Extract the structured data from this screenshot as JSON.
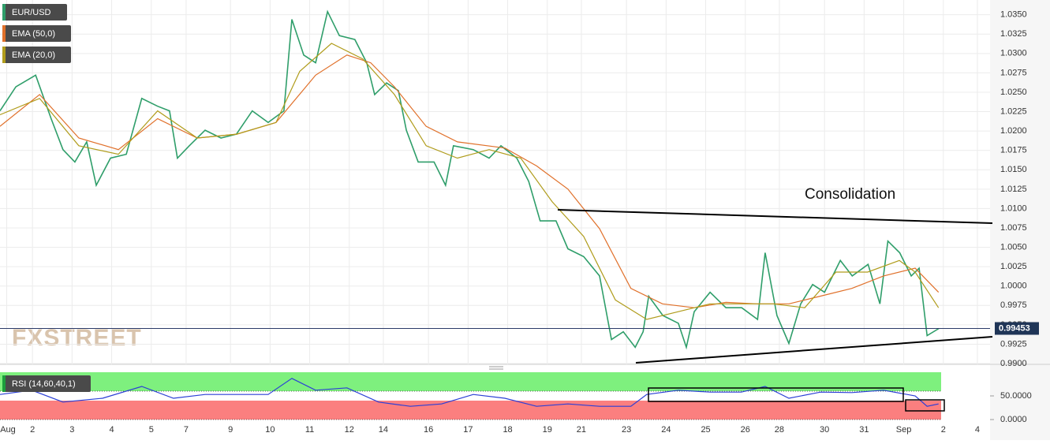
{
  "chart_data": [
    {
      "type": "line",
      "series": [
        {
          "name": "EUR/USD",
          "color": "#2f9e6a",
          "x": [
            0.18,
            0.58,
            1.08,
            1.47,
            1.77,
            2.07,
            2.37,
            2.61,
            2.97,
            3.37,
            3.76,
            4.16,
            4.46,
            4.66,
            4.96,
            5.36,
            5.76,
            6.15,
            6.55,
            6.95,
            7.35,
            7.55,
            7.85,
            8.15,
            8.45,
            8.75,
            9.14,
            9.44,
            9.64,
            9.94,
            10.24,
            10.44,
            10.74,
            11.14,
            11.43,
            11.63,
            12.13,
            12.53,
            12.83,
            13.23,
            13.53,
            13.82,
            14.22,
            14.52,
            14.92,
            15.32,
            15.62,
            15.92,
            16.22,
            16.42,
            16.56,
            16.92,
            17.31,
            17.51,
            17.71,
            18.11,
            18.51,
            18.91,
            19.31,
            19.5,
            19.8,
            20.1,
            20.4,
            20.7,
            21.0,
            21.4,
            21.7,
            22.1,
            22.4,
            22.6,
            22.9,
            23.19,
            23.39,
            23.59,
            23.89
          ],
          "values": [
            1.0226,
            1.0257,
            1.0272,
            1.0216,
            1.0176,
            1.016,
            1.0186,
            1.013,
            1.0165,
            1.017,
            1.0242,
            1.0232,
            1.0226,
            1.0165,
            1.0181,
            1.0201,
            1.0191,
            1.0196,
            1.0226,
            1.0211,
            1.0226,
            1.0344,
            1.0298,
            1.0288,
            1.0354,
            1.0323,
            1.0318,
            1.0288,
            1.0247,
            1.0262,
            1.0252,
            1.0201,
            1.016,
            1.016,
            1.013,
            1.0181,
            1.0176,
            1.0165,
            1.0181,
            1.0165,
            1.0135,
            1.0084,
            1.0084,
            1.0048,
            1.0038,
            1.0013,
            0.9931,
            0.9941,
            0.9921,
            0.9941,
            0.9987,
            0.9962,
            0.9952,
            0.9921,
            0.9967,
            0.9992,
            0.9972,
            0.9972,
            0.9957,
            1.0043,
            0.9962,
            0.9926,
            0.9977,
            1.0002,
            0.9992,
            1.0033,
            1.0013,
            1.0028,
            0.9977,
            1.0058,
            1.0043,
            1.0013,
            1.0023,
            0.9936,
            0.99453
          ]
        },
        {
          "name": "EMA (50,0)",
          "color": "#e0702a",
          "x": [
            0.18,
            1.18,
            2.17,
            3.17,
            4.16,
            5.16,
            6.16,
            7.15,
            8.15,
            8.94,
            9.54,
            10.14,
            10.94,
            11.73,
            12.93,
            13.73,
            14.52,
            15.32,
            16.11,
            16.91,
            17.71,
            18.51,
            19.3,
            20.1,
            20.9,
            21.69,
            22.49,
            23.29,
            23.88
          ],
          "values": [
            1.0206,
            1.0247,
            1.0191,
            1.0176,
            1.0216,
            1.0191,
            1.0196,
            1.0211,
            1.0272,
            1.0298,
            1.0288,
            1.0257,
            1.0206,
            1.0186,
            1.0178,
            1.0155,
            1.0125,
            1.0074,
            0.9997,
            0.9977,
            0.9972,
            0.9979,
            0.9977,
            0.9977,
            0.9987,
            0.9997,
            1.0013,
            1.0023,
            0.9992
          ]
        },
        {
          "name": "EMA (20,0)",
          "color": "#b09c1c",
          "x": [
            0.18,
            1.18,
            2.17,
            3.17,
            4.16,
            5.16,
            6.16,
            7.15,
            7.75,
            8.55,
            9.34,
            10.14,
            10.94,
            11.73,
            12.53,
            13.33,
            14.12,
            14.92,
            15.72,
            16.51,
            17.31,
            18.11,
            18.9,
            19.7,
            20.5,
            21.29,
            22.09,
            22.89,
            23.29,
            23.88
          ],
          "values": [
            1.0221,
            1.0242,
            1.0181,
            1.017,
            1.0226,
            1.0191,
            1.0196,
            1.0211,
            1.0277,
            1.0313,
            1.0293,
            1.0247,
            1.0181,
            1.0165,
            1.0176,
            1.0165,
            1.0109,
            1.0064,
            0.9982,
            0.9957,
            0.9967,
            0.9977,
            0.9977,
            0.9977,
            0.9972,
            1.0018,
            1.0018,
            1.0033,
            1.0018,
            0.9972
          ]
        }
      ],
      "last_value": 0.99453,
      "annotation": "Consolidation",
      "xlim": [
        0.18,
        25.18
      ],
      "xticks": [
        {
          "value": 0.35,
          "label": "Aug"
        },
        {
          "value": 1,
          "label": "2"
        },
        {
          "value": 2,
          "label": "3"
        },
        {
          "value": 3,
          "label": "4"
        },
        {
          "value": 4,
          "label": "5"
        },
        {
          "value": 4.88,
          "label": "7"
        },
        {
          "value": 6,
          "label": "9"
        },
        {
          "value": 7,
          "label": "10"
        },
        {
          "value": 8,
          "label": "11"
        },
        {
          "value": 9,
          "label": "12"
        },
        {
          "value": 9.86,
          "label": "14"
        },
        {
          "value": 11,
          "label": "16"
        },
        {
          "value": 12,
          "label": "17"
        },
        {
          "value": 13,
          "label": "18"
        },
        {
          "value": 14,
          "label": "19"
        },
        {
          "value": 14.86,
          "label": "21"
        },
        {
          "value": 16,
          "label": "23"
        },
        {
          "value": 17,
          "label": "24"
        },
        {
          "value": 18,
          "label": "25"
        },
        {
          "value": 19,
          "label": "26"
        },
        {
          "value": 19.86,
          "label": "28"
        },
        {
          "value": 21,
          "label": "30"
        },
        {
          "value": 22,
          "label": "31"
        },
        {
          "value": 23,
          "label": "Sep"
        },
        {
          "value": 24,
          "label": "2"
        },
        {
          "value": 24.86,
          "label": "4"
        }
      ],
      "ylim": [
        0.9899,
        1.0369
      ],
      "yticks": [
        {
          "value": 0.99,
          "label": "0.9900"
        },
        {
          "value": 0.9925,
          "label": "0.9925"
        },
        {
          "value": 0.995,
          "label": "0.9950"
        },
        {
          "value": 0.9975,
          "label": "0.9975"
        },
        {
          "value": 1.0,
          "label": "1.0000"
        },
        {
          "value": 1.0025,
          "label": "1.0025"
        },
        {
          "value": 1.005,
          "label": "1.0050"
        },
        {
          "value": 1.0075,
          "label": "1.0075"
        },
        {
          "value": 1.01,
          "label": "1.0100"
        },
        {
          "value": 1.0125,
          "label": "1.0125"
        },
        {
          "value": 1.015,
          "label": "1.0150"
        },
        {
          "value": 1.0175,
          "label": "1.0175"
        },
        {
          "value": 1.02,
          "label": "1.0200"
        },
        {
          "value": 1.0225,
          "label": "1.0225"
        },
        {
          "value": 1.025,
          "label": "1.0250"
        },
        {
          "value": 1.0275,
          "label": "1.0275"
        },
        {
          "value": 1.03,
          "label": "1.0300"
        },
        {
          "value": 1.0325,
          "label": "1.0325"
        },
        {
          "value": 1.035,
          "label": "1.0350"
        }
      ],
      "grid": true
    },
    {
      "type": "line",
      "series": [
        {
          "name": "RSI (14,60,40,1)",
          "color": "#2b3fd6",
          "x": [
            0.18,
            0.98,
            1.77,
            2.77,
            3.76,
            4.56,
            5.36,
            6.16,
            6.95,
            7.55,
            8.15,
            8.94,
            9.74,
            10.54,
            11.33,
            12.13,
            12.93,
            13.73,
            14.52,
            15.32,
            16.11,
            16.51,
            17.31,
            18.11,
            18.9,
            19.5,
            20.1,
            20.9,
            21.69,
            22.49,
            23.29,
            23.59,
            23.88
          ],
          "values": [
            53,
            62,
            37,
            45,
            70,
            45,
            53,
            53,
            53,
            87,
            62,
            67,
            37,
            28,
            33,
            53,
            45,
            28,
            33,
            28,
            28,
            53,
            62,
            58,
            58,
            70,
            45,
            58,
            57,
            62,
            50,
            28,
            33
          ]
        }
      ],
      "bands": [
        {
          "from": 60,
          "to": 100,
          "color": "#7ef07e"
        },
        {
          "from": 0,
          "to": 40,
          "color": "#fb7f7f"
        }
      ],
      "ylim": [
        0,
        100
      ],
      "yticks": [
        {
          "value": 50,
          "label": "50.0000"
        },
        {
          "value": 0,
          "label": "0.0000"
        }
      ]
    }
  ],
  "watermark": "FXSTREET"
}
